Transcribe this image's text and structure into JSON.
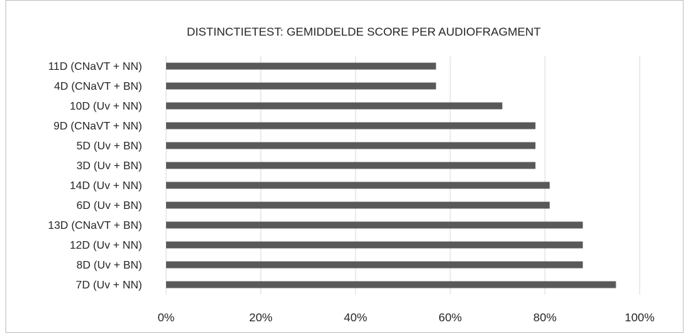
{
  "chart_data": {
    "type": "bar",
    "orientation": "horizontal",
    "title": "DISTINCTIETEST: GEMIDDELDE SCORE PER AUDIOFRAGMENT",
    "xlabel": "",
    "ylabel": "",
    "categories": [
      "11D (CNaVT + NN)",
      "4D (CNaVT + BN)",
      "10D (Uv + NN)",
      "9D (CNaVT + NN)",
      "5D (Uv + BN)",
      "3D (Uv + BN)",
      "14D (Uv + NN)",
      "6D (Uv + BN)",
      "13D (CNaVT + BN)",
      "12D (Uv + NN)",
      "8D (Uv + BN)",
      "7D (Uv + NN)"
    ],
    "values": [
      0.57,
      0.57,
      0.71,
      0.78,
      0.78,
      0.78,
      0.81,
      0.81,
      0.88,
      0.88,
      0.88,
      0.95
    ],
    "xlim": [
      0,
      1
    ],
    "xticks": [
      "0%",
      "20%",
      "40%",
      "60%",
      "80%",
      "100%"
    ],
    "grid": "vertical",
    "bar_color": "#595959",
    "grid_color": "#d9d9d9"
  }
}
